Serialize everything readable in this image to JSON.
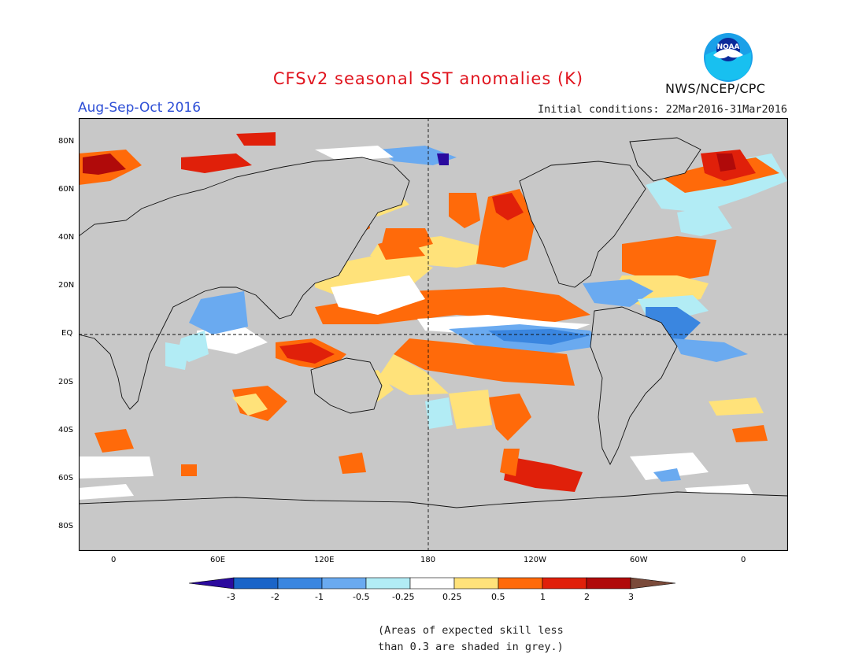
{
  "header": {
    "title": "CFSv2 seasonal SST anomalies (K)",
    "season": "Aug-Sep-Oct 2016",
    "initial_conditions": "Initial conditions: 22Mar2016-31Mar2016",
    "agency": "NWS/NCEP/CPC",
    "logo_text": "NOAA"
  },
  "map": {
    "lat_labels": [
      "80N",
      "60N",
      "40N",
      "20N",
      "EQ",
      "20S",
      "40S",
      "60S",
      "80S"
    ],
    "lon_labels": [
      "0",
      "60E",
      "120E",
      "180",
      "120W",
      "60W",
      "0"
    ],
    "background_grey": "#c8c8c8",
    "ocean_colors": {
      "land": "#c8c8c8"
    }
  },
  "colorbar": {
    "levels": [
      "-3",
      "-2",
      "-1",
      "-0.5",
      "-0.25",
      "0.25",
      "0.5",
      "1",
      "2",
      "3"
    ],
    "colors": [
      "#2b0a9e",
      "#1a64c8",
      "#3a86e0",
      "#6aaaf0",
      "#b2ecf5",
      "#ffffff",
      "#ffe27a",
      "#ff6a0a",
      "#e0200a",
      "#b00a0a",
      "#7a4a3a"
    ]
  },
  "footnote": {
    "line1": "(Areas of expected skill less",
    "line2": "than 0.3 are shaded in grey.)"
  }
}
